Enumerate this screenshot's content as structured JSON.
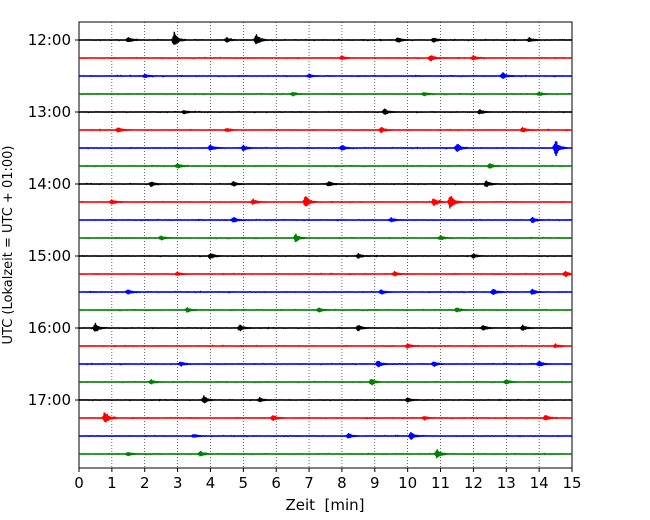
{
  "chart_data": {
    "type": "line",
    "xlabel": "Zeit  [min]",
    "ylabel": "UTC (Lokalzeit = UTC + 01:00)",
    "xlim": [
      0,
      15
    ],
    "x_ticks": [
      0,
      1,
      2,
      3,
      4,
      5,
      6,
      7,
      8,
      9,
      10,
      11,
      12,
      13,
      14,
      15
    ],
    "x_tick_labels": [
      "0",
      "1",
      "2",
      "3",
      "4",
      "5",
      "6",
      "7",
      "8",
      "9",
      "10",
      "11",
      "12",
      "13",
      "14",
      "15"
    ],
    "y_tick_labels": [
      "12:00",
      "13:00",
      "14:00",
      "15:00",
      "16:00",
      "17:00"
    ],
    "vertical_grid": true,
    "trace_minutes": 15,
    "trace_colors": [
      "#000000",
      "#ff0000",
      "#0000ff",
      "#008000"
    ],
    "traces": [
      {
        "start": "12:00",
        "events": [
          [
            2.9,
            0.9
          ],
          [
            5.4,
            0.7
          ],
          [
            1.5,
            0.3
          ],
          [
            4.5,
            0.25
          ],
          [
            9.7,
            0.3
          ],
          [
            10.8,
            0.3
          ],
          [
            13.7,
            0.25
          ]
        ]
      },
      {
        "start": "12:15",
        "events": [
          [
            10.7,
            0.35
          ],
          [
            12.0,
            0.25
          ],
          [
            8.0,
            0.2
          ]
        ]
      },
      {
        "start": "12:30",
        "events": [
          [
            12.9,
            0.35
          ],
          [
            2.0,
            0.2
          ],
          [
            7.0,
            0.2
          ]
        ]
      },
      {
        "start": "12:45",
        "events": [
          [
            6.5,
            0.2
          ],
          [
            10.5,
            0.2
          ],
          [
            14.0,
            0.2
          ]
        ]
      },
      {
        "start": "13:00",
        "events": [
          [
            9.3,
            0.35
          ],
          [
            3.2,
            0.2
          ],
          [
            12.2,
            0.25
          ]
        ]
      },
      {
        "start": "13:15",
        "events": [
          [
            1.2,
            0.3
          ],
          [
            9.2,
            0.3
          ],
          [
            4.5,
            0.2
          ],
          [
            13.5,
            0.3
          ]
        ]
      },
      {
        "start": "13:30",
        "events": [
          [
            14.5,
            1.0
          ],
          [
            11.5,
            0.6
          ],
          [
            4.0,
            0.35
          ],
          [
            5.0,
            0.3
          ],
          [
            8.0,
            0.3
          ]
        ]
      },
      {
        "start": "13:45",
        "events": [
          [
            3.0,
            0.25
          ],
          [
            12.5,
            0.25
          ]
        ]
      },
      {
        "start": "14:00",
        "events": [
          [
            2.2,
            0.3
          ],
          [
            7.6,
            0.3
          ],
          [
            12.4,
            0.35
          ],
          [
            4.7,
            0.25
          ]
        ]
      },
      {
        "start": "14:15",
        "events": [
          [
            6.9,
            0.75
          ],
          [
            11.3,
            0.85
          ],
          [
            10.8,
            0.55
          ],
          [
            1.0,
            0.3
          ],
          [
            5.3,
            0.3
          ]
        ]
      },
      {
        "start": "14:30",
        "events": [
          [
            4.7,
            0.3
          ],
          [
            9.5,
            0.25
          ],
          [
            13.8,
            0.3
          ]
        ]
      },
      {
        "start": "14:45",
        "events": [
          [
            6.6,
            0.45
          ],
          [
            2.5,
            0.25
          ],
          [
            11.0,
            0.25
          ]
        ]
      },
      {
        "start": "15:00",
        "events": [
          [
            4.0,
            0.35
          ],
          [
            8.5,
            0.25
          ],
          [
            12.0,
            0.25
          ]
        ]
      },
      {
        "start": "15:15",
        "events": [
          [
            14.8,
            0.35
          ],
          [
            9.6,
            0.25
          ],
          [
            3.0,
            0.2
          ]
        ]
      },
      {
        "start": "15:30",
        "events": [
          [
            12.6,
            0.35
          ],
          [
            1.5,
            0.25
          ],
          [
            9.2,
            0.25
          ],
          [
            13.8,
            0.3
          ]
        ]
      },
      {
        "start": "15:45",
        "events": [
          [
            3.3,
            0.25
          ],
          [
            7.3,
            0.25
          ],
          [
            11.5,
            0.25
          ]
        ]
      },
      {
        "start": "16:00",
        "events": [
          [
            0.5,
            0.5
          ],
          [
            4.9,
            0.35
          ],
          [
            8.5,
            0.35
          ],
          [
            12.3,
            0.3
          ],
          [
            13.5,
            0.3
          ]
        ]
      },
      {
        "start": "16:15",
        "events": [
          [
            10.0,
            0.25
          ],
          [
            14.5,
            0.2
          ]
        ]
      },
      {
        "start": "16:30",
        "events": [
          [
            9.1,
            0.4
          ],
          [
            14.0,
            0.35
          ],
          [
            3.1,
            0.25
          ],
          [
            10.8,
            0.3
          ]
        ]
      },
      {
        "start": "16:45",
        "events": [
          [
            8.9,
            0.35
          ],
          [
            2.2,
            0.25
          ],
          [
            13.0,
            0.25
          ]
        ]
      },
      {
        "start": "17:00",
        "events": [
          [
            3.8,
            0.45
          ],
          [
            5.5,
            0.25
          ],
          [
            10.0,
            0.25
          ]
        ]
      },
      {
        "start": "17:15",
        "events": [
          [
            0.8,
            0.85
          ],
          [
            5.9,
            0.35
          ],
          [
            14.2,
            0.35
          ],
          [
            10.5,
            0.2
          ]
        ]
      },
      {
        "start": "17:30",
        "events": [
          [
            10.1,
            0.4
          ],
          [
            8.2,
            0.25
          ],
          [
            3.5,
            0.2
          ]
        ]
      },
      {
        "start": "17:45",
        "events": [
          [
            10.9,
            0.55
          ],
          [
            3.7,
            0.3
          ],
          [
            1.5,
            0.2
          ]
        ]
      }
    ]
  }
}
